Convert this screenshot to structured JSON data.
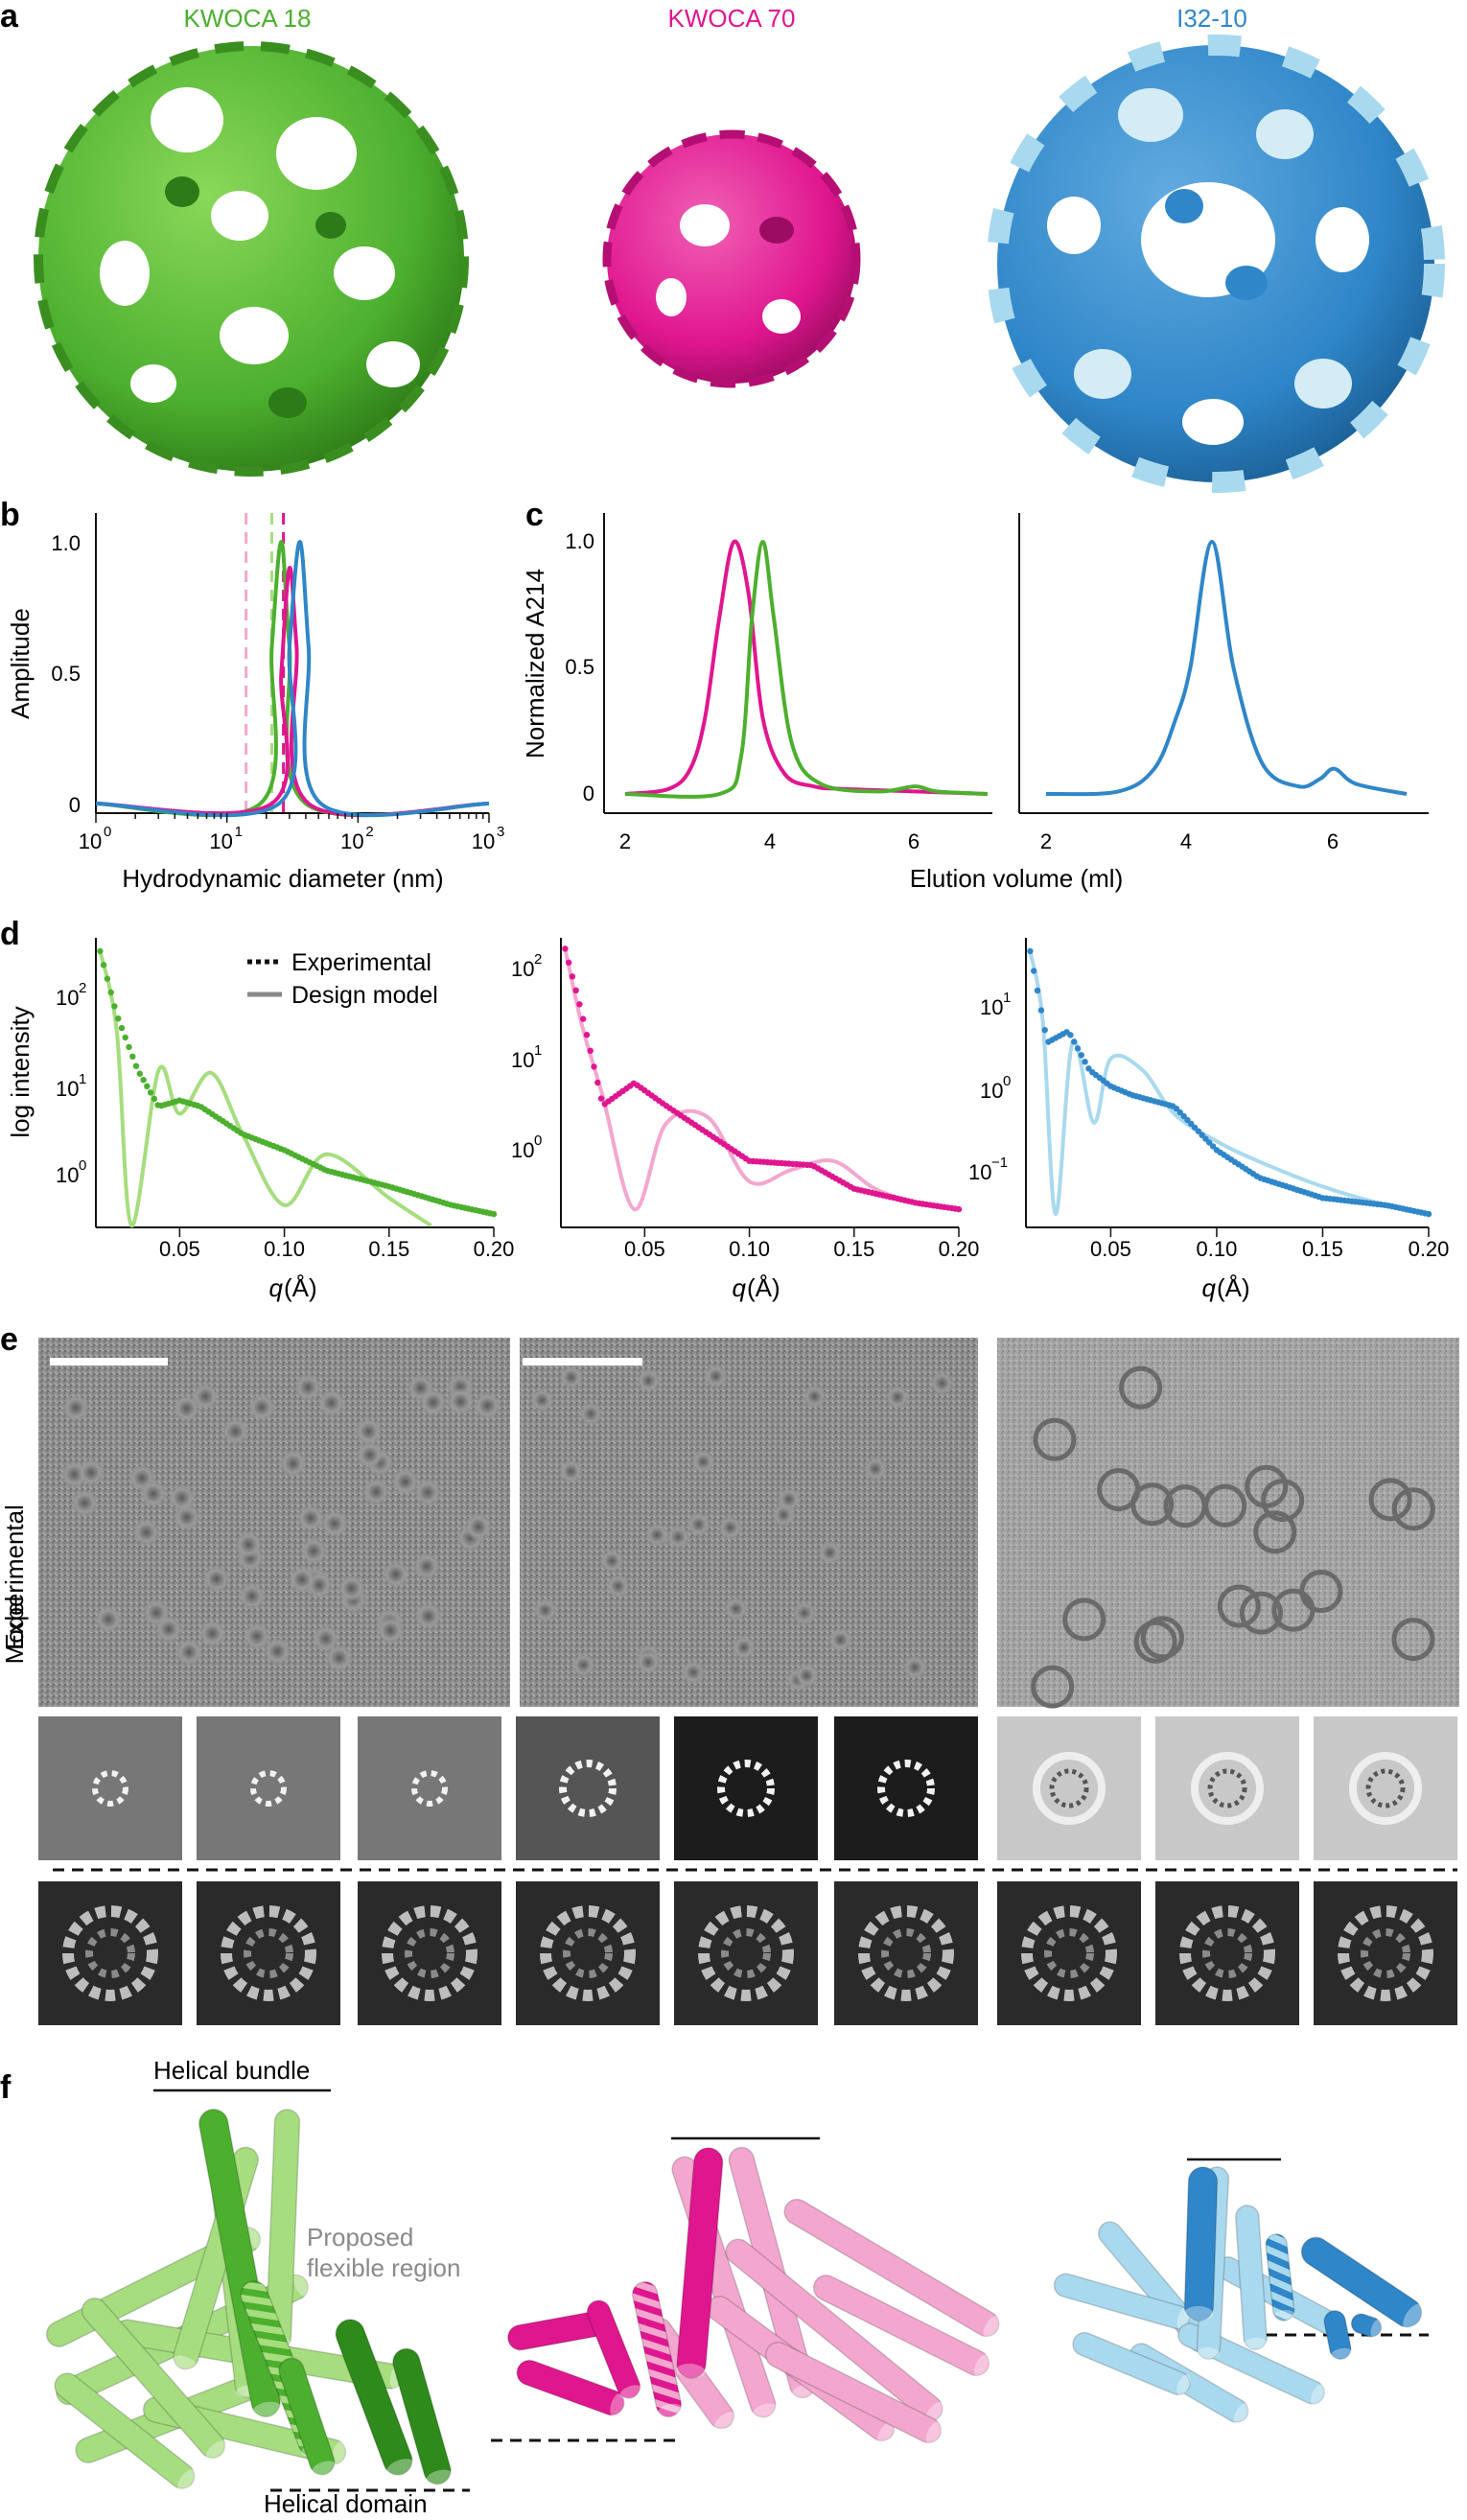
{
  "panels": {
    "a": {
      "letter": "a",
      "titles": [
        "KWOCA 18",
        "KWOCA 70",
        "I32-10"
      ]
    },
    "b": {
      "letter": "b",
      "xlabel": "Hydrodynamic diameter (nm)",
      "ylabel": "Amplitude",
      "yticks": [
        "0",
        "0.5",
        "1.0"
      ],
      "xticks": [
        "10",
        "10",
        "10",
        "10"
      ],
      "xtick_exps": [
        "0",
        "1",
        "2",
        "3"
      ]
    },
    "c": {
      "letter": "c",
      "ylabel": "Normalized A214",
      "xlabel": "Elution volume (ml)",
      "yticks": [
        "0",
        "0.5",
        "1.0"
      ],
      "xticks": [
        "2",
        "4",
        "6"
      ]
    },
    "d": {
      "letter": "d",
      "ylabel": "log intensity",
      "legend": [
        "Experimental",
        "Design model"
      ],
      "xlabel_q": "q",
      "xlabel_unit": " (Å)",
      "xticks": [
        "0.05",
        "0.10",
        "0.15",
        "0.20"
      ],
      "yt1_base": [
        "10",
        "10",
        "10"
      ],
      "yt1_exp": [
        "0",
        "1",
        "2"
      ],
      "yt2_base": [
        "10",
        "10",
        "10"
      ],
      "yt2_exp": [
        "0",
        "1",
        "2"
      ],
      "yt3_base": [
        "10",
        "10",
        "10"
      ],
      "yt3_exp": [
        "−1",
        "0",
        "1"
      ]
    },
    "e": {
      "letter": "e",
      "row_experimental": "Experimental",
      "row_model": "Model"
    },
    "f": {
      "letter": "f",
      "helical_bundle": "Helical bundle",
      "proposed1": "Proposed",
      "proposed2": "flexible region",
      "helical_domain": "Helical domain"
    }
  },
  "colors": {
    "green": "#4caf2e",
    "light_green": "#a6dd7f",
    "magenta": "#e0168f",
    "light_magenta": "#f3a7cf",
    "blue": "#2f86c8",
    "light_blue": "#a9d9ee"
  },
  "chart_data": [
    {
      "type": "line",
      "panel": "b",
      "xscale": "log",
      "xlim": [
        1,
        1000
      ],
      "ylim": [
        0,
        1.0
      ],
      "series": [
        {
          "color": "green",
          "x": [
            1,
            18,
            22,
            26,
            30,
            40,
            1000
          ],
          "y": [
            0,
            0,
            0.6,
            1.0,
            0.6,
            0,
            0
          ]
        },
        {
          "color": "magenta",
          "x": [
            1,
            22,
            26,
            30,
            34,
            42,
            1000
          ],
          "y": [
            0,
            0,
            0.5,
            0.9,
            0.6,
            0,
            0
          ]
        },
        {
          "color": "blue",
          "x": [
            1,
            25,
            30,
            36,
            42,
            52,
            1000
          ],
          "y": [
            0,
            0,
            0.6,
            1.0,
            0.6,
            0,
            0
          ]
        }
      ],
      "vlines": [
        {
          "color": "light_magenta",
          "x": 14
        },
        {
          "color": "light_green",
          "x": 22
        },
        {
          "color": "light_blue",
          "x": 27
        },
        {
          "color": "magenta",
          "x": 27
        }
      ]
    },
    {
      "type": "line",
      "panel": "c-left",
      "xlim": [
        2,
        7
      ],
      "ylim": [
        0,
        1.0
      ],
      "series": [
        {
          "color": "magenta",
          "x": [
            2,
            2.6,
            2.9,
            3.1,
            3.3,
            3.5,
            3.7,
            3.9,
            4.2,
            4.6,
            5,
            6,
            7
          ],
          "y": [
            0,
            0.02,
            0.1,
            0.3,
            0.7,
            1.0,
            0.8,
            0.3,
            0.08,
            0.03,
            0.02,
            0.01,
            0
          ]
        },
        {
          "color": "green",
          "x": [
            2,
            3.3,
            3.6,
            3.75,
            3.9,
            4.05,
            4.3,
            4.7,
            5.5,
            6,
            6.3,
            7
          ],
          "y": [
            0,
            0,
            0.15,
            0.7,
            1.0,
            0.7,
            0.2,
            0.04,
            0.01,
            0.03,
            0.01,
            0
          ]
        }
      ]
    },
    {
      "type": "line",
      "panel": "c-right",
      "xlim": [
        2,
        7
      ],
      "ylim": [
        0,
        1.0
      ],
      "series": [
        {
          "color": "blue",
          "x": [
            2,
            3,
            3.5,
            3.8,
            4.0,
            4.3,
            4.6,
            5.0,
            5.5,
            5.8,
            6.0,
            6.3,
            7
          ],
          "y": [
            0,
            0.01,
            0.1,
            0.3,
            0.5,
            1.0,
            0.5,
            0.12,
            0.03,
            0.06,
            0.1,
            0.04,
            0
          ]
        }
      ]
    },
    {
      "type": "scatter",
      "panel": "d-1",
      "yscale": "log",
      "xlim": [
        0.01,
        0.2
      ],
      "ylim": [
        0.3,
        400
      ],
      "experimental": {
        "color": "green",
        "x": [
          0.012,
          0.02,
          0.03,
          0.04,
          0.05,
          0.06,
          0.08,
          0.1,
          0.12,
          0.15,
          0.18,
          0.2
        ],
        "y": [
          300,
          60,
          15,
          6,
          7,
          6,
          3,
          2,
          1.2,
          0.8,
          0.5,
          0.4
        ]
      },
      "design_model": {
        "color": "light_green",
        "x": [
          0.012,
          0.02,
          0.027,
          0.04,
          0.05,
          0.065,
          0.08,
          0.1,
          0.12,
          0.15,
          0.17
        ],
        "y": [
          300,
          40,
          0.3,
          15,
          5,
          14,
          3,
          0.5,
          1.8,
          0.6,
          0.3
        ]
      }
    },
    {
      "type": "scatter",
      "panel": "d-2",
      "yscale": "log",
      "xlim": [
        0.01,
        0.2
      ],
      "ylim": [
        0.2,
        250
      ],
      "experimental": {
        "color": "magenta",
        "x": [
          0.012,
          0.02,
          0.03,
          0.045,
          0.06,
          0.08,
          0.1,
          0.13,
          0.15,
          0.18,
          0.2
        ],
        "y": [
          200,
          40,
          4,
          7,
          4,
          2,
          1,
          0.9,
          0.5,
          0.35,
          0.3
        ]
      },
      "design_model": {
        "color": "light_magenta",
        "x": [
          0.012,
          0.02,
          0.03,
          0.045,
          0.06,
          0.08,
          0.1,
          0.12,
          0.14,
          0.16,
          0.18,
          0.2
        ],
        "y": [
          200,
          30,
          5,
          0.3,
          2.5,
          3,
          0.6,
          0.8,
          1.0,
          0.5,
          0.35,
          0.3
        ]
      }
    },
    {
      "type": "scatter",
      "panel": "d-3",
      "yscale": "log",
      "xlim": [
        0.01,
        0.2
      ],
      "ylim": [
        0.03,
        40
      ],
      "experimental": {
        "color": "blue",
        "x": [
          0.012,
          0.02,
          0.03,
          0.04,
          0.05,
          0.06,
          0.08,
          0.1,
          0.12,
          0.15,
          0.18,
          0.2
        ],
        "y": [
          30,
          3,
          4,
          1.5,
          1.0,
          0.8,
          0.6,
          0.2,
          0.1,
          0.06,
          0.05,
          0.04
        ]
      },
      "design_model": {
        "color": "light_blue",
        "x": [
          0.012,
          0.018,
          0.024,
          0.032,
          0.042,
          0.05,
          0.065,
          0.08,
          0.1,
          0.12,
          0.15,
          0.18,
          0.2
        ],
        "y": [
          30,
          5,
          0.04,
          3,
          0.4,
          2,
          1.5,
          0.5,
          0.25,
          0.15,
          0.08,
          0.05,
          0.04
        ]
      }
    }
  ]
}
